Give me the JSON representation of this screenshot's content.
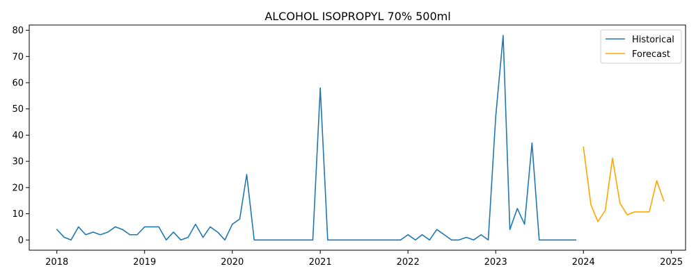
{
  "chart_data": {
    "type": "line",
    "title": "ALCOHOL ISOPROPYL 70% 500ml",
    "xlabel": "",
    "ylabel": "",
    "x_ticks": [
      "2018",
      "2019",
      "2020",
      "2021",
      "2022",
      "2023",
      "2024",
      "2025"
    ],
    "y_ticks": [
      0,
      10,
      20,
      30,
      40,
      50,
      60,
      70,
      80
    ],
    "xlim": [
      "2017-09-08",
      "2025-03-01"
    ],
    "ylim": [
      -3.9,
      82
    ],
    "grid": false,
    "legend_position": "top-right",
    "series": [
      {
        "name": "Historical",
        "color": "#1f77b4",
        "points": [
          [
            "2018-01",
            4
          ],
          [
            "2018-02",
            1
          ],
          [
            "2018-03",
            0
          ],
          [
            "2018-04",
            5
          ],
          [
            "2018-05",
            2
          ],
          [
            "2018-06",
            3
          ],
          [
            "2018-07",
            2
          ],
          [
            "2018-08",
            3
          ],
          [
            "2018-09",
            5
          ],
          [
            "2018-10",
            4
          ],
          [
            "2018-11",
            2
          ],
          [
            "2018-12",
            2
          ],
          [
            "2019-01",
            5
          ],
          [
            "2019-02",
            5
          ],
          [
            "2019-03",
            5
          ],
          [
            "2019-04",
            0
          ],
          [
            "2019-05",
            3
          ],
          [
            "2019-06",
            0
          ],
          [
            "2019-07",
            1
          ],
          [
            "2019-08",
            6
          ],
          [
            "2019-09",
            1
          ],
          [
            "2019-10",
            5
          ],
          [
            "2019-11",
            3
          ],
          [
            "2019-12",
            0
          ],
          [
            "2020-01",
            6
          ],
          [
            "2020-02",
            8
          ],
          [
            "2020-03",
            25
          ],
          [
            "2020-04",
            0
          ],
          [
            "2020-05",
            0
          ],
          [
            "2020-06",
            0
          ],
          [
            "2020-07",
            0
          ],
          [
            "2020-08",
            0
          ],
          [
            "2020-09",
            0
          ],
          [
            "2020-10",
            0
          ],
          [
            "2020-11",
            0
          ],
          [
            "2020-12",
            0
          ],
          [
            "2021-01",
            58
          ],
          [
            "2021-02",
            0
          ],
          [
            "2021-03",
            0
          ],
          [
            "2021-04",
            0
          ],
          [
            "2021-05",
            0
          ],
          [
            "2021-06",
            0
          ],
          [
            "2021-07",
            0
          ],
          [
            "2021-08",
            0
          ],
          [
            "2021-09",
            0
          ],
          [
            "2021-10",
            0
          ],
          [
            "2021-11",
            0
          ],
          [
            "2021-12",
            0
          ],
          [
            "2022-01",
            2
          ],
          [
            "2022-02",
            0
          ],
          [
            "2022-03",
            2
          ],
          [
            "2022-04",
            0
          ],
          [
            "2022-05",
            4
          ],
          [
            "2022-06",
            2
          ],
          [
            "2022-07",
            0
          ],
          [
            "2022-08",
            0
          ],
          [
            "2022-09",
            1
          ],
          [
            "2022-10",
            0
          ],
          [
            "2022-11",
            2
          ],
          [
            "2022-12",
            0
          ],
          [
            "2023-01",
            47
          ],
          [
            "2023-02",
            78
          ],
          [
            "2023-03",
            4
          ],
          [
            "2023-04",
            12
          ],
          [
            "2023-05",
            6
          ],
          [
            "2023-06",
            37
          ],
          [
            "2023-07",
            0
          ],
          [
            "2023-08",
            0
          ],
          [
            "2023-09",
            0
          ],
          [
            "2023-10",
            0
          ],
          [
            "2023-11",
            0
          ],
          [
            "2023-12",
            0
          ]
        ]
      },
      {
        "name": "Forecast",
        "color": "#ffa500",
        "points": [
          [
            "2024-01",
            35.5
          ],
          [
            "2024-02",
            13.5
          ],
          [
            "2024-03",
            7
          ],
          [
            "2024-04",
            11.3
          ],
          [
            "2024-05",
            31.2
          ],
          [
            "2024-06",
            14
          ],
          [
            "2024-07",
            9.6
          ],
          [
            "2024-08",
            10.7
          ],
          [
            "2024-09",
            10.7
          ],
          [
            "2024-10",
            10.7
          ],
          [
            "2024-11",
            22.6
          ],
          [
            "2024-12",
            14.8
          ]
        ]
      }
    ]
  }
}
